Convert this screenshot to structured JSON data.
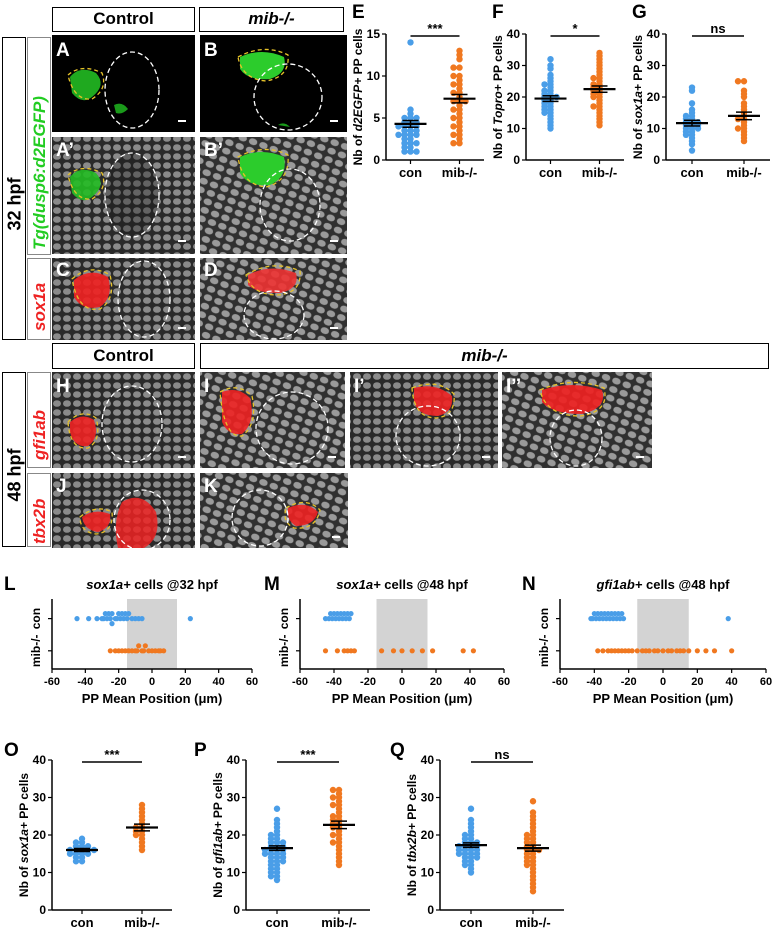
{
  "headers": {
    "control_top": "Control",
    "mib_top": "mib-/-",
    "control_mid": "Control",
    "mib_mid": "mib-/-"
  },
  "stages": {
    "hpf32": "32 hpf",
    "hpf48": "48 hpf"
  },
  "row_labels": {
    "dusp6": "Tg(dusp6:d2EGFP)",
    "sox1a": "sox1a",
    "gfi1ab": "gfi1ab",
    "tbx2b": "tbx2b"
  },
  "panel_letters": {
    "A": "A",
    "B": "B",
    "A2": "A’",
    "B2": "B’",
    "C": "C",
    "D": "D",
    "H": "H",
    "I": "I",
    "I2": "I’",
    "I3": "I’’",
    "J": "J",
    "K": "K",
    "E": "E",
    "F": "F",
    "G": "G",
    "L": "L",
    "M": "M",
    "N": "N",
    "O": "O",
    "P": "P",
    "Q": "Q"
  },
  "colors": {
    "control": "#4a9ee8",
    "mutant": "#f07820",
    "shade": "#d3d3d3",
    "green": "#22cc22",
    "red": "#ee2222"
  },
  "chart_data": [
    {
      "id": "E",
      "type": "scatter",
      "ylabel_pre": "Nb of ",
      "ylabel_ital": "d2EGFP+",
      "ylabel_post": " PP cells",
      "categories": [
        "con",
        "mib-/-"
      ],
      "ylim": [
        0,
        15
      ],
      "yticks": [
        0,
        5,
        10,
        15
      ],
      "significance": "***",
      "series": [
        {
          "category": "con",
          "mean": 4.3,
          "sem": 0.4,
          "values": [
            14,
            6,
            5.5,
            5,
            5,
            5,
            4.5,
            4.5,
            4.5,
            4,
            4,
            4,
            4,
            3.5,
            3.5,
            3.5,
            3,
            3,
            3,
            3,
            2.5,
            2.5,
            2,
            2,
            2,
            1.5,
            1.5,
            1,
            1,
            1
          ]
        },
        {
          "category": "mib-/-",
          "mean": 7.3,
          "sem": 0.5,
          "values": [
            13,
            12.5,
            12,
            11,
            11,
            10,
            10,
            9.5,
            9,
            9,
            8.5,
            8,
            8,
            7.5,
            7,
            7,
            7,
            6.5,
            6,
            6,
            5.5,
            5,
            5,
            4.5,
            4,
            4,
            3.5,
            3,
            3,
            2.5,
            2,
            2
          ]
        }
      ]
    },
    {
      "id": "F",
      "type": "scatter",
      "ylabel_pre": "Nb of ",
      "ylabel_ital": "Topro+",
      "ylabel_post": " PP cells",
      "categories": [
        "con",
        "mib-/-"
      ],
      "ylim": [
        0,
        40
      ],
      "yticks": [
        0,
        10,
        20,
        30,
        40
      ],
      "significance": "*",
      "series": [
        {
          "category": "con",
          "mean": 19.5,
          "sem": 0.9,
          "values": [
            32,
            30,
            29,
            27,
            26,
            25,
            24,
            24,
            23,
            22,
            22,
            21,
            21,
            20,
            20,
            20,
            19,
            19,
            18,
            18,
            17,
            17,
            16,
            16,
            15,
            15,
            14,
            13,
            12,
            11,
            10
          ]
        },
        {
          "category": "mib-/-",
          "mean": 22.5,
          "sem": 1.0,
          "values": [
            34,
            33,
            32,
            31,
            30,
            29,
            28,
            27,
            26,
            26,
            25,
            24,
            24,
            23,
            23,
            22,
            22,
            21,
            21,
            20,
            20,
            19,
            18,
            17,
            17,
            16,
            15,
            14,
            13,
            12,
            11
          ]
        }
      ]
    },
    {
      "id": "G",
      "type": "scatter",
      "ylabel_pre": "Nb of ",
      "ylabel_ital": "sox1a+",
      "ylabel_post": " PP cells",
      "categories": [
        "con",
        "mib-/-"
      ],
      "ylim": [
        0,
        40
      ],
      "yticks": [
        0,
        10,
        20,
        30,
        40
      ],
      "significance": "ns",
      "series": [
        {
          "category": "con",
          "mean": 11.7,
          "sem": 0.9,
          "values": [
            23,
            22,
            18,
            16,
            15,
            14,
            14,
            13,
            13,
            12,
            12,
            12,
            11,
            11,
            11,
            10,
            10,
            10,
            9,
            9,
            8,
            8,
            7,
            6,
            5,
            3
          ]
        },
        {
          "category": "mib-/-",
          "mean": 14,
          "sem": 1.2,
          "values": [
            25,
            25,
            22,
            21,
            20,
            18,
            17,
            16,
            15,
            14,
            13,
            13,
            12,
            11,
            10,
            10,
            9,
            8,
            7,
            6
          ]
        }
      ]
    },
    {
      "id": "L",
      "type": "strip",
      "title_ital": "sox1a+",
      "title_post": " cells @32 hpf",
      "xlabel": "PP Mean Position (μm)",
      "xlim": [
        -60,
        60
      ],
      "xticks": [
        -60,
        -40,
        -20,
        0,
        20,
        40,
        60
      ],
      "shade": [
        -15,
        15
      ],
      "rows": [
        {
          "label": "con",
          "values": [
            -45,
            -38,
            -33,
            -30,
            -29,
            -28,
            -27,
            -26,
            -25,
            -24,
            -24,
            -22,
            -21,
            -20,
            -19,
            -18,
            -17,
            -16,
            -15,
            -14,
            -12,
            -10,
            -8,
            -6,
            23
          ]
        },
        {
          "label": "mib-/-",
          "values": [
            -25,
            -22,
            -20,
            -18,
            -16,
            -14,
            -12,
            -10,
            -9,
            -8,
            -6,
            -5,
            -4,
            -2,
            0,
            2,
            4,
            5,
            7
          ]
        }
      ]
    },
    {
      "id": "M",
      "type": "strip",
      "title_ital": "sox1a+",
      "title_post": " cells @48 hpf",
      "xlabel": "PP Mean Position (μm)",
      "xlim": [
        -60,
        60
      ],
      "xticks": [
        -60,
        -40,
        -20,
        0,
        20,
        40,
        60
      ],
      "shade": [
        -15,
        15
      ],
      "rows": [
        {
          "label": "con",
          "values": [
            -45,
            -43,
            -42,
            -41,
            -40,
            -39,
            -38,
            -37,
            -36,
            -35,
            -34,
            -33,
            -32,
            -31,
            -30
          ]
        },
        {
          "label": "mib-/-",
          "values": [
            -45,
            -38,
            -34,
            -32,
            -30,
            -28,
            -12,
            -5,
            0,
            6,
            12,
            18,
            36,
            42
          ]
        }
      ]
    },
    {
      "id": "N",
      "type": "strip",
      "title_ital": "gfi1ab+",
      "title_post": " cells @48 hpf",
      "xlabel": "PP Mean Position (μm)",
      "xlim": [
        -60,
        60
      ],
      "xticks": [
        -60,
        -40,
        -20,
        0,
        20,
        40,
        60
      ],
      "shade": [
        -15,
        15
      ],
      "rows": [
        {
          "label": "con",
          "values": [
            -42,
            -41,
            -40,
            -39,
            -38,
            -37,
            -36,
            -35,
            -34,
            -33,
            -32,
            -31,
            -30,
            -29,
            -28,
            -27,
            -26,
            -25,
            -24,
            -23,
            38
          ]
        },
        {
          "label": "mib-/-",
          "values": [
            -38,
            -35,
            -32,
            -30,
            -28,
            -26,
            -24,
            -22,
            -20,
            -18,
            -15,
            -12,
            -10,
            -8,
            -5,
            -3,
            0,
            3,
            5,
            8,
            10,
            12,
            15,
            20,
            25,
            30,
            40
          ]
        }
      ]
    },
    {
      "id": "O",
      "type": "scatter",
      "ylabel_pre": "Nb of ",
      "ylabel_ital": "sox1a+",
      "ylabel_post": " PP cells",
      "categories": [
        "con",
        "mib-/-"
      ],
      "ylim": [
        0,
        40
      ],
      "yticks": [
        0,
        10,
        20,
        30,
        40
      ],
      "significance": "***",
      "series": [
        {
          "category": "con",
          "mean": 16,
          "sem": 0.4,
          "values": [
            19,
            18,
            18,
            17,
            17,
            17,
            16,
            16,
            16,
            16,
            16,
            15,
            15,
            15,
            15,
            14,
            14,
            13,
            13
          ]
        },
        {
          "category": "mib-/-",
          "mean": 22,
          "sem": 0.9,
          "values": [
            28,
            27,
            26,
            25,
            24,
            23,
            22,
            22,
            21,
            21,
            20,
            20,
            19,
            18,
            17,
            16
          ]
        }
      ]
    },
    {
      "id": "P",
      "type": "scatter",
      "ylabel_pre": "Nb of ",
      "ylabel_ital": "gfi1ab+",
      "ylabel_post": " PP cells",
      "categories": [
        "con",
        "mib-/-"
      ],
      "ylim": [
        0,
        40
      ],
      "yticks": [
        0,
        10,
        20,
        30,
        40
      ],
      "significance": "***",
      "series": [
        {
          "category": "con",
          "mean": 16.5,
          "sem": 0.6,
          "values": [
            27,
            24,
            23,
            22,
            21,
            20,
            20,
            19,
            19,
            18,
            18,
            18,
            17,
            17,
            17,
            16,
            16,
            16,
            16,
            15,
            15,
            15,
            15,
            14,
            14,
            14,
            13,
            13,
            13,
            12,
            12,
            11,
            11,
            10,
            10,
            9,
            9,
            8
          ]
        },
        {
          "category": "mib-/-",
          "mean": 22.7,
          "sem": 1.0,
          "values": [
            32,
            32,
            31,
            30,
            30,
            29,
            28,
            28,
            27,
            26,
            25,
            25,
            24,
            24,
            23,
            23,
            22,
            22,
            21,
            20,
            20,
            19,
            18,
            18,
            17,
            16,
            15,
            14,
            13,
            12
          ]
        }
      ]
    },
    {
      "id": "Q",
      "type": "scatter",
      "ylabel_pre": "Nb of ",
      "ylabel_ital": "tbx2b+",
      "ylabel_post": " PP cells",
      "categories": [
        "con",
        "mib-/-"
      ],
      "ylim": [
        0,
        40
      ],
      "yticks": [
        0,
        10,
        20,
        30,
        40
      ],
      "significance": "ns",
      "series": [
        {
          "category": "con",
          "mean": 17.3,
          "sem": 0.6,
          "values": [
            27,
            24,
            23,
            22,
            21,
            20,
            20,
            19,
            19,
            18,
            18,
            18,
            17,
            17,
            17,
            17,
            16,
            16,
            16,
            16,
            15,
            15,
            15,
            15,
            14,
            14,
            14,
            13,
            13,
            12,
            12,
            11,
            10
          ]
        },
        {
          "category": "mib-/-",
          "mean": 16.5,
          "sem": 0.8,
          "values": [
            29,
            26,
            25,
            24,
            23,
            22,
            21,
            20,
            20,
            19,
            19,
            18,
            18,
            17,
            17,
            16,
            16,
            16,
            15,
            15,
            14,
            14,
            13,
            13,
            12,
            12,
            11,
            10,
            9,
            8,
            7,
            6,
            5
          ]
        }
      ]
    }
  ]
}
